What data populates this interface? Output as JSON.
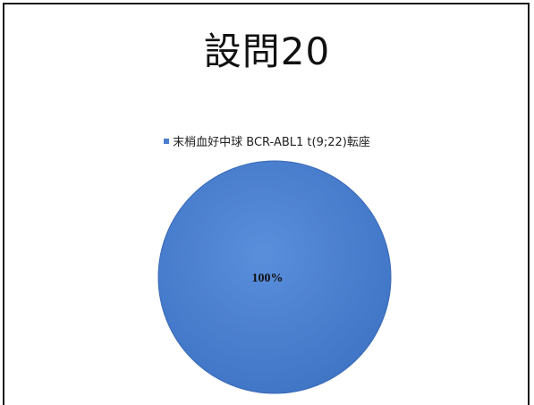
{
  "slide": {
    "title": "設問20"
  },
  "chart_data": {
    "type": "pie",
    "title": "設問20",
    "legend": {
      "position": "top",
      "entries": [
        "末梢血好中球 BCR-ABL1 t(9;22)転座"
      ]
    },
    "slices": [
      {
        "label": "末梢血好中球 BCR-ABL1 t(9;22)転座",
        "value": 100,
        "display": "100%",
        "color": "#4a7fce"
      }
    ]
  }
}
